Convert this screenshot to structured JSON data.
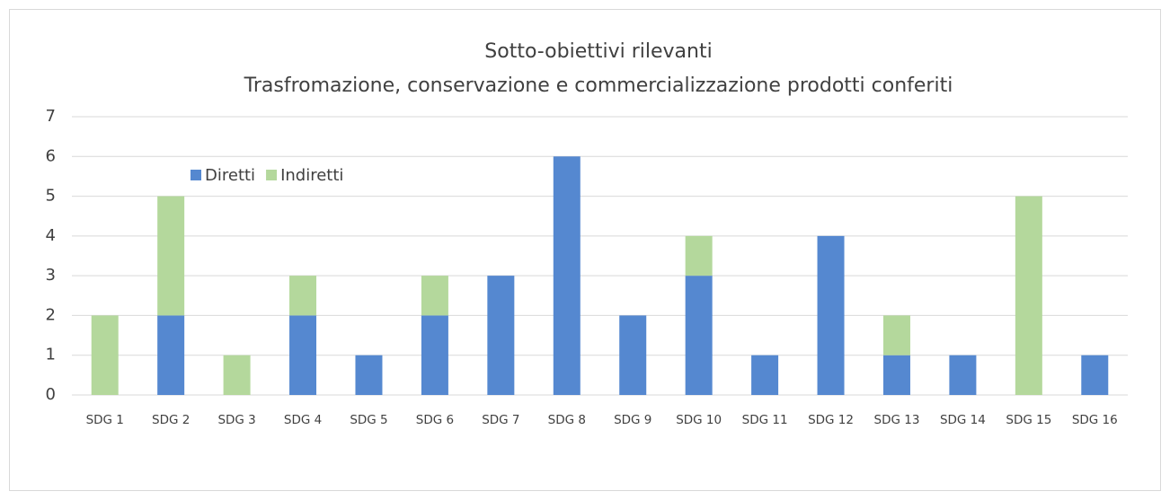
{
  "chart_data": {
    "type": "bar",
    "stacked": true,
    "title": "Sotto-obiettivi rilevanti",
    "subtitle": "Trasfromazione, conservazione e commercializzazione prodotti conferiti",
    "categories": [
      "SDG 1",
      "SDG 2",
      "SDG 3",
      "SDG 4",
      "SDG 5",
      "SDG 6",
      "SDG 7",
      "SDG 8",
      "SDG 9",
      "SDG 10",
      "SDG 11",
      "SDG 12",
      "SDG 13",
      "SDG 14",
      "SDG 15",
      "SDG 16"
    ],
    "series": [
      {
        "name": "Diretti",
        "color": "#5588d0",
        "values": [
          0,
          2,
          0,
          2,
          1,
          2,
          3,
          6,
          2,
          3,
          1,
          4,
          1,
          1,
          0,
          1
        ]
      },
      {
        "name": "Indiretti",
        "color": "#b4d89c",
        "values": [
          2,
          3,
          1,
          1,
          0,
          1,
          0,
          0,
          0,
          1,
          0,
          0,
          1,
          0,
          5,
          0
        ]
      }
    ],
    "ylim": [
      0,
      7
    ],
    "yticks": [
      0,
      1,
      2,
      3,
      4,
      5,
      6,
      7
    ],
    "grid": true,
    "legend": "top-left"
  }
}
